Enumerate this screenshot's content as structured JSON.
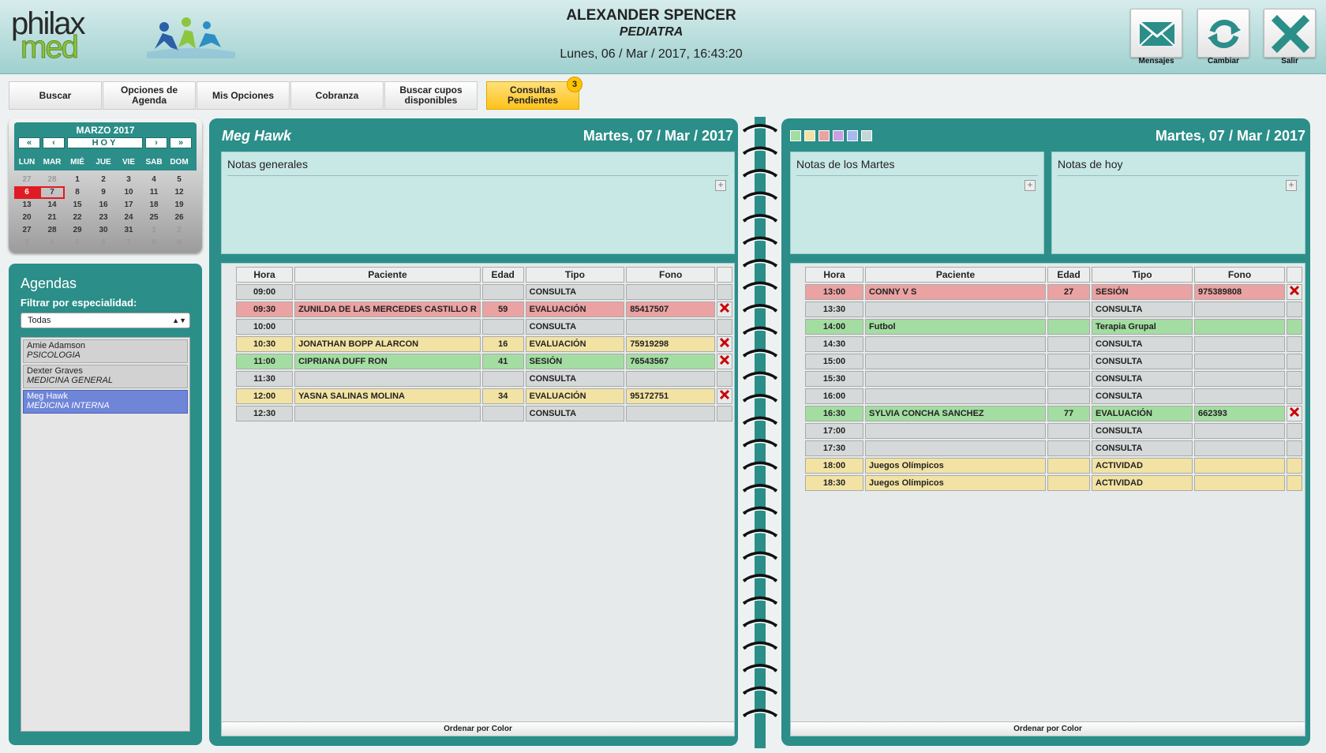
{
  "header": {
    "doctor_name": "ALEXANDER SPENCER",
    "specialty": "PEDIATRA",
    "datetime": "Lunes, 06 / Mar / 2017, 16:43:20",
    "logo_line1": "philax",
    "logo_line2": "med",
    "buttons": [
      {
        "label": "Mensajes",
        "icon": "envelope-icon"
      },
      {
        "label": "Cambiar",
        "icon": "refresh-icon"
      },
      {
        "label": "Salir",
        "icon": "close-icon"
      }
    ]
  },
  "menu": {
    "items": [
      "Buscar",
      "Opciones de Agenda",
      "Mis Opciones",
      "Cobranza",
      "Buscar cupos disponibles",
      "Consultas Pendientes"
    ],
    "badge": "3"
  },
  "calendar": {
    "title": "MARZO 2017",
    "today_label": "HOY",
    "weekdays": [
      "LUN",
      "MAR",
      "MIÉ",
      "JUE",
      "VIE",
      "SAB",
      "DOM"
    ],
    "weeks": [
      [
        "27",
        "28",
        "1",
        "2",
        "3",
        "4",
        "5"
      ],
      [
        "6",
        "7",
        "8",
        "9",
        "10",
        "11",
        "12"
      ],
      [
        "13",
        "14",
        "15",
        "16",
        "17",
        "18",
        "19"
      ],
      [
        "20",
        "21",
        "22",
        "23",
        "24",
        "25",
        "26"
      ],
      [
        "27",
        "28",
        "29",
        "30",
        "31",
        "1",
        "2"
      ],
      [
        "3",
        "4",
        "5",
        "6",
        "7",
        "8",
        "9"
      ]
    ]
  },
  "agendas": {
    "title": "Agendas",
    "filter_label": "Filtrar por especialidad:",
    "filter_value": "Todas",
    "items": [
      {
        "name": "Amie Adamson",
        "specialty": "PSICOLOGIA"
      },
      {
        "name": "Dexter Graves",
        "specialty": "MEDICINA GENERAL"
      },
      {
        "name": "Meg Hawk",
        "specialty": "MEDICINA INTERNA"
      }
    ]
  },
  "left_page": {
    "name": "Meg Hawk",
    "date": "Martes, 07 / Mar / 2017",
    "notes_label": "Notas generales",
    "columns": [
      "Hora",
      "Paciente",
      "Edad",
      "Tipo",
      "Fono"
    ],
    "rows": [
      {
        "hora": "09:00",
        "paciente": "",
        "edad": "",
        "tipo": "CONSULTA",
        "fono": "",
        "color": "none"
      },
      {
        "hora": "09:30",
        "paciente": "ZUNILDA DE LAS MERCEDES CASTILLO R",
        "edad": "59",
        "tipo": "EVALUACIÓN",
        "fono": "85417507",
        "color": "red"
      },
      {
        "hora": "10:00",
        "paciente": "",
        "edad": "",
        "tipo": "CONSULTA",
        "fono": "",
        "color": "none"
      },
      {
        "hora": "10:30",
        "paciente": "JONATHAN BOPP ALARCON",
        "edad": "16",
        "tipo": "EVALUACIÓN",
        "fono": "75919298",
        "color": "yellow"
      },
      {
        "hora": "11:00",
        "paciente": "CIPRIANA DUFF RON",
        "edad": "41",
        "tipo": "SESIÓN",
        "fono": "76543567",
        "color": "green"
      },
      {
        "hora": "11:30",
        "paciente": "",
        "edad": "",
        "tipo": "CONSULTA",
        "fono": "",
        "color": "none"
      },
      {
        "hora": "12:00",
        "paciente": "YASNA SALINAS MOLINA",
        "edad": "34",
        "tipo": "EVALUACIÓN",
        "fono": "95172751",
        "color": "yellow"
      },
      {
        "hora": "12:30",
        "paciente": "",
        "edad": "",
        "tipo": "CONSULTA",
        "fono": "",
        "color": "none"
      }
    ],
    "order_label": "Ordenar por Color"
  },
  "right_page": {
    "date": "Martes, 07 / Mar / 2017",
    "notes_weekday_label": "Notas de los Martes",
    "notes_today_label": "Notas de hoy",
    "swatch_colors": [
      "#a3dda1",
      "#f2e3a4",
      "#eba2a2",
      "#c8a0e0",
      "#a8b8f0",
      "#c6d6d6"
    ],
    "columns": [
      "Hora",
      "Paciente",
      "Edad",
      "Tipo",
      "Fono"
    ],
    "rows": [
      {
        "hora": "13:00",
        "paciente": "CONNY V S",
        "edad": "27",
        "tipo": "SESIÓN",
        "fono": "975389808",
        "color": "red"
      },
      {
        "hora": "13:30",
        "paciente": "",
        "edad": "",
        "tipo": "CONSULTA",
        "fono": "",
        "color": "none"
      },
      {
        "hora": "14:00",
        "paciente": "Futbol",
        "edad": "",
        "tipo": "Terapia Grupal",
        "fono": "",
        "color": "green"
      },
      {
        "hora": "14:30",
        "paciente": "",
        "edad": "",
        "tipo": "CONSULTA",
        "fono": "",
        "color": "none"
      },
      {
        "hora": "15:00",
        "paciente": "",
        "edad": "",
        "tipo": "CONSULTA",
        "fono": "",
        "color": "none"
      },
      {
        "hora": "15:30",
        "paciente": "",
        "edad": "",
        "tipo": "CONSULTA",
        "fono": "",
        "color": "none"
      },
      {
        "hora": "16:00",
        "paciente": "",
        "edad": "",
        "tipo": "CONSULTA",
        "fono": "",
        "color": "none"
      },
      {
        "hora": "16:30",
        "paciente": "SYLVIA CONCHA SANCHEZ",
        "edad": "77",
        "tipo": "EVALUACIÓN",
        "fono": "662393",
        "color": "green"
      },
      {
        "hora": "17:00",
        "paciente": "",
        "edad": "",
        "tipo": "CONSULTA",
        "fono": "",
        "color": "none"
      },
      {
        "hora": "17:30",
        "paciente": "",
        "edad": "",
        "tipo": "CONSULTA",
        "fono": "",
        "color": "none"
      },
      {
        "hora": "18:00",
        "paciente": "Juegos Olímpicos",
        "edad": "",
        "tipo": "ACTIVIDAD",
        "fono": "",
        "color": "yellow"
      },
      {
        "hora": "18:30",
        "paciente": "Juegos Olímpicos",
        "edad": "",
        "tipo": "ACTIVIDAD",
        "fono": "",
        "color": "yellow"
      }
    ],
    "order_label": "Ordenar por Color"
  }
}
